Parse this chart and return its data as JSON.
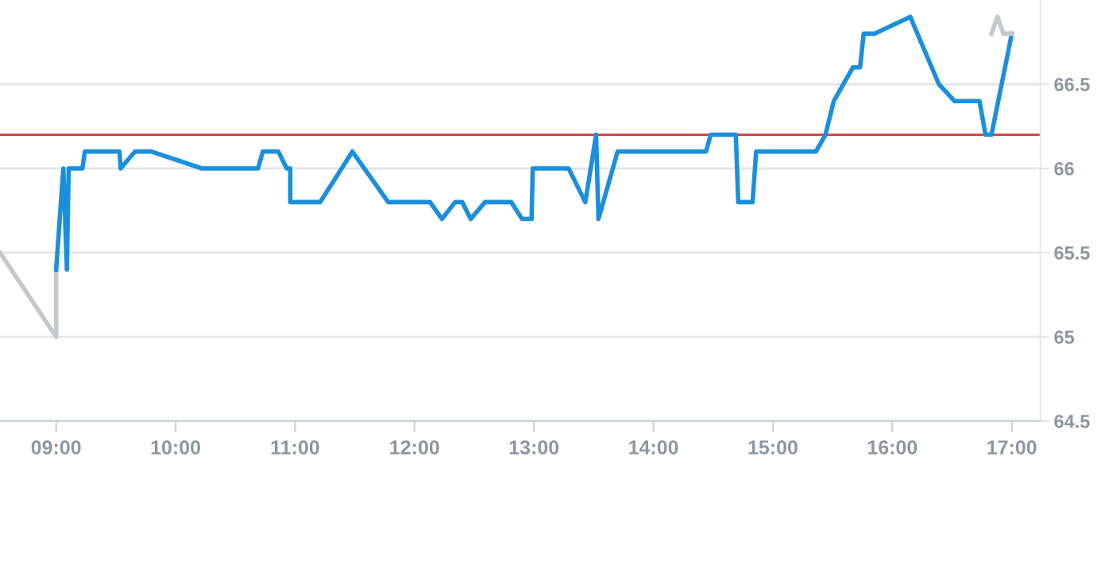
{
  "chart_data": {
    "type": "line",
    "series": [
      {
        "color": "#c4c8cc",
        "x": [
          8.53,
          9.0,
          9.0
        ],
        "values": [
          65.5,
          65.0,
          65.4
        ]
      },
      {
        "color": "#1a8fdd",
        "x": [
          9.0,
          9.06,
          9.09,
          9.105,
          9.22,
          9.24,
          9.53,
          9.54,
          9.66,
          9.8,
          10.22,
          10.69,
          10.73,
          10.86,
          10.93,
          10.96,
          10.96,
          11.21,
          11.48,
          11.78,
          12.13,
          12.23,
          12.34,
          12.4,
          12.47,
          12.59,
          12.81,
          12.9,
          12.98,
          12.99,
          13.29,
          13.43,
          13.52,
          13.54,
          13.7,
          14.44,
          14.48,
          14.69,
          14.71,
          14.83,
          14.86,
          15.36,
          15.44,
          15.51,
          15.67,
          15.73,
          15.76,
          15.85,
          16.15,
          16.39,
          16.52,
          16.73,
          16.78,
          16.83,
          17.0
        ],
        "values": [
          65.4,
          66.0,
          65.4,
          66.0,
          66.0,
          66.1,
          66.1,
          66.0,
          66.1,
          66.1,
          66.0,
          66.0,
          66.1,
          66.1,
          66.0,
          66.0,
          65.8,
          65.8,
          66.1,
          65.8,
          65.8,
          65.7,
          65.8,
          65.8,
          65.7,
          65.8,
          65.8,
          65.7,
          65.7,
          66.0,
          66.0,
          65.8,
          66.2,
          65.7,
          66.1,
          66.1,
          66.2,
          66.2,
          65.8,
          65.8,
          66.1,
          66.1,
          66.2,
          66.4,
          66.6,
          66.6,
          66.8,
          66.8,
          66.9,
          66.5,
          66.4,
          66.4,
          66.2,
          66.2,
          66.8
        ]
      },
      {
        "color": "#c4c8cc",
        "x": [
          16.83,
          16.88,
          16.93,
          17.0
        ],
        "values": [
          66.8,
          66.9,
          66.8,
          66.8
        ]
      }
    ],
    "xlim": [
      8.53,
      17.24
    ],
    "xticks": [
      {
        "value": 9,
        "label": "09:00"
      },
      {
        "value": 10,
        "label": "10:00"
      },
      {
        "value": 11,
        "label": "11:00"
      },
      {
        "value": 12,
        "label": "12:00"
      },
      {
        "value": 13,
        "label": "13:00"
      },
      {
        "value": 14,
        "label": "14:00"
      },
      {
        "value": 15,
        "label": "15:00"
      },
      {
        "value": 16,
        "label": "16:00"
      },
      {
        "value": 17,
        "label": "17:00"
      }
    ],
    "ylim": [
      64.5,
      67.0
    ],
    "yticks": [
      64.5,
      65,
      65.5,
      66,
      66.5
    ],
    "ref_lines": [
      {
        "axis": "y",
        "value": 66.2,
        "color": "#d9363e"
      }
    ],
    "grid": "y",
    "legend": false,
    "marker": "none",
    "line_style": "solid"
  }
}
